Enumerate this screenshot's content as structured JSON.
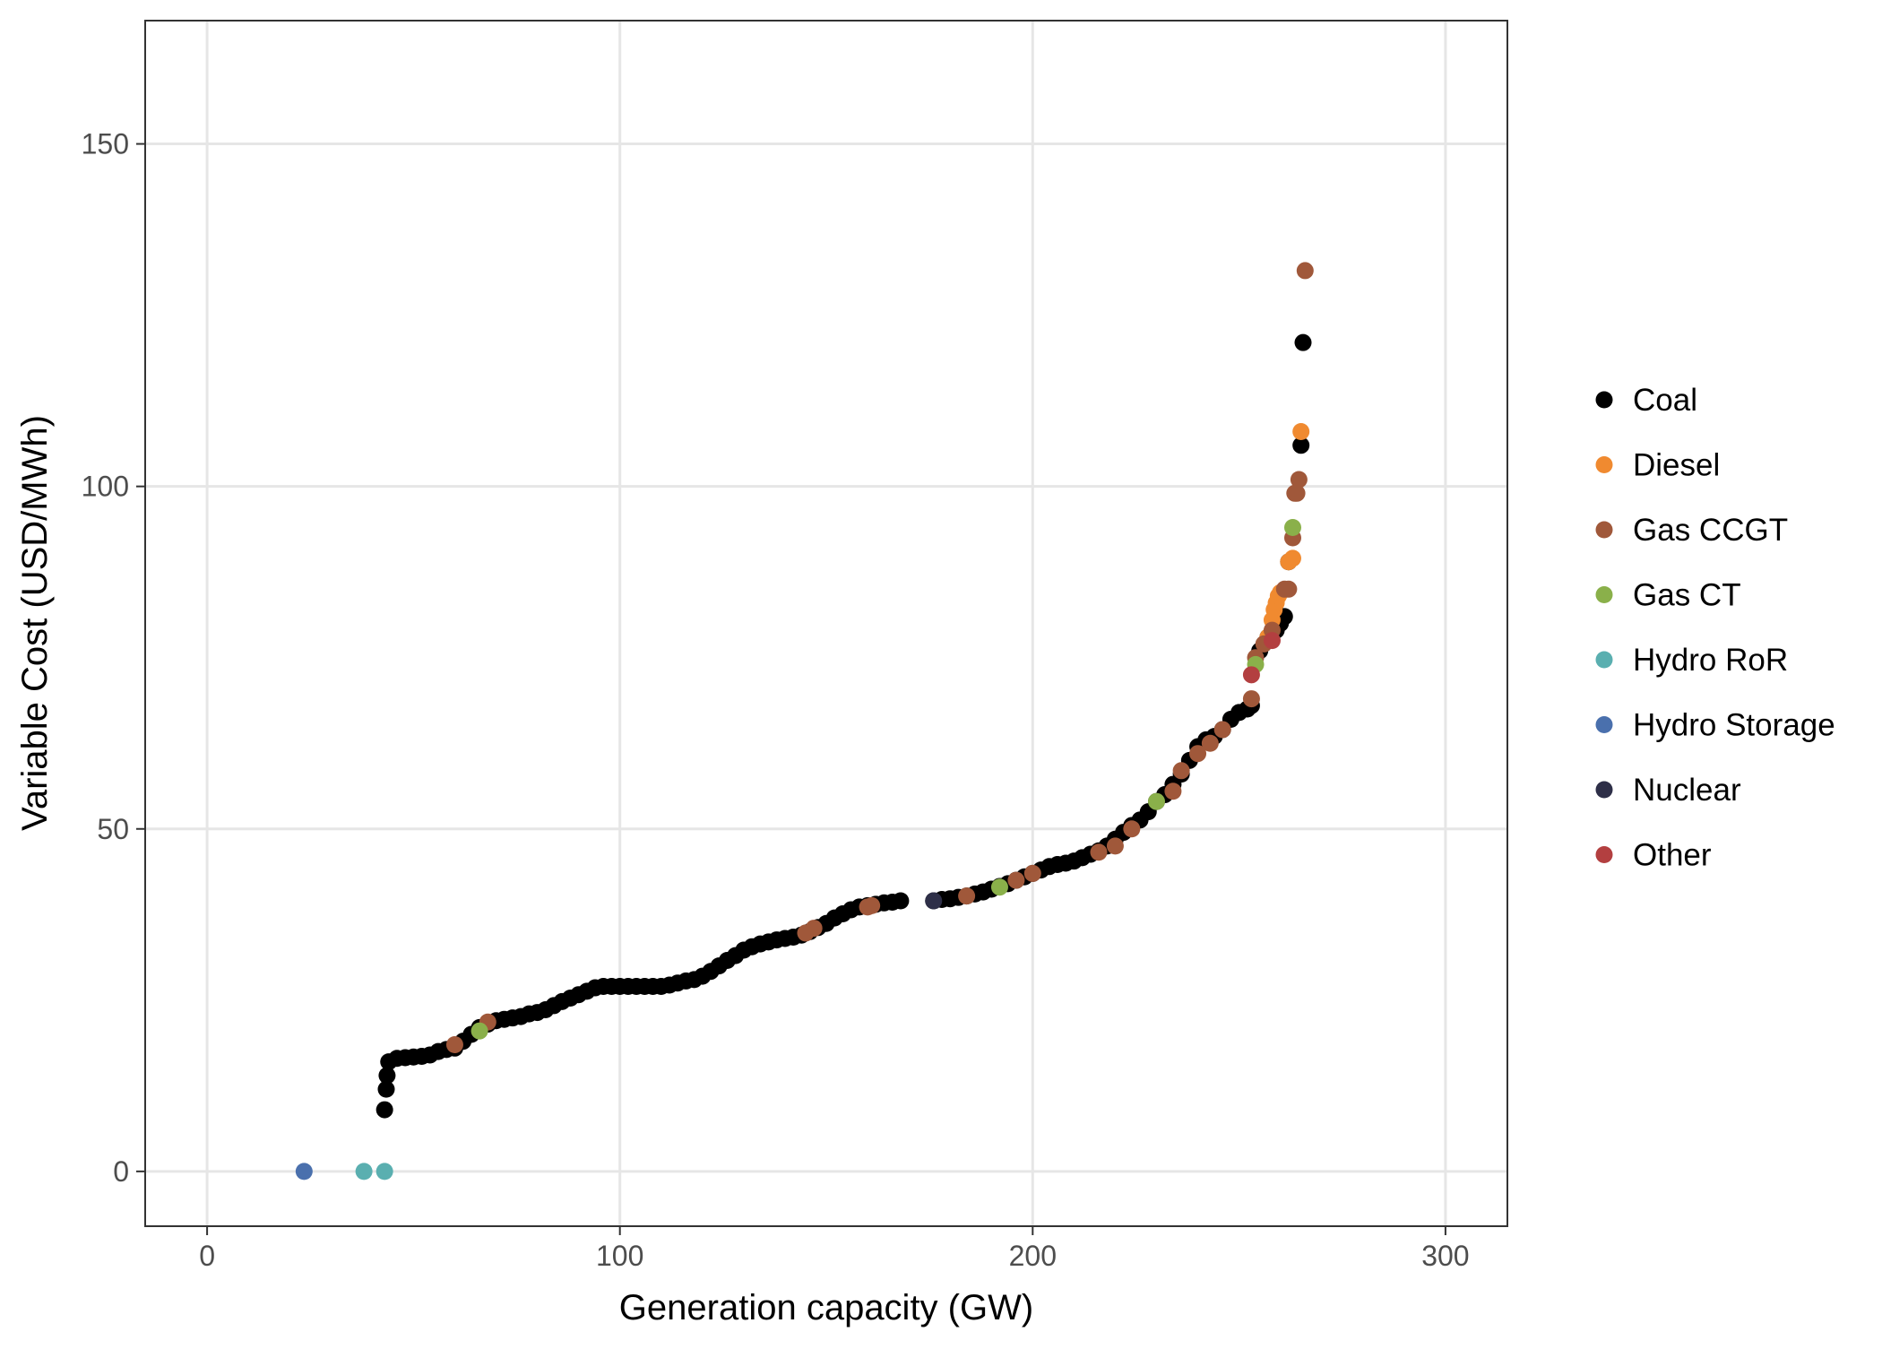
{
  "chart_data": {
    "type": "scatter",
    "title": "",
    "xlabel": "Generation capacity (GW)",
    "ylabel": "Variable Cost (USD/MWh)",
    "xlim": [
      -15,
      315
    ],
    "ylim": [
      -8,
      168
    ],
    "x_ticks": [
      0,
      100,
      200,
      300
    ],
    "y_ticks": [
      0,
      50,
      100,
      150
    ],
    "grid": true,
    "legend_position": "right",
    "series": [
      {
        "name": "Coal",
        "color": "#000000",
        "points": [
          [
            43,
            9
          ],
          [
            43.4,
            12
          ],
          [
            43.6,
            14
          ],
          [
            44,
            16
          ],
          [
            46,
            16.5
          ],
          [
            48,
            16.6
          ],
          [
            50,
            16.7
          ],
          [
            52,
            16.8
          ],
          [
            54,
            17
          ],
          [
            56,
            17.5
          ],
          [
            58,
            17.8
          ],
          [
            60,
            18
          ],
          [
            62,
            19
          ],
          [
            64,
            20
          ],
          [
            66,
            21
          ],
          [
            68,
            21.5
          ],
          [
            70,
            22
          ],
          [
            72,
            22.2
          ],
          [
            74,
            22.4
          ],
          [
            76,
            22.6
          ],
          [
            78,
            23
          ],
          [
            80,
            23.2
          ],
          [
            82,
            23.6
          ],
          [
            84,
            24.2
          ],
          [
            86,
            24.8
          ],
          [
            88,
            25.3
          ],
          [
            90,
            25.8
          ],
          [
            92,
            26.3
          ],
          [
            94,
            26.8
          ],
          [
            96,
            27
          ],
          [
            98,
            27
          ],
          [
            100,
            27
          ],
          [
            102,
            27
          ],
          [
            104,
            27
          ],
          [
            106,
            27
          ],
          [
            108,
            27
          ],
          [
            110,
            27
          ],
          [
            112,
            27.2
          ],
          [
            114,
            27.5
          ],
          [
            116,
            27.8
          ],
          [
            118,
            28
          ],
          [
            120,
            28.5
          ],
          [
            122,
            29.2
          ],
          [
            124,
            30
          ],
          [
            126,
            30.8
          ],
          [
            128,
            31.5
          ],
          [
            130,
            32.3
          ],
          [
            132,
            32.8
          ],
          [
            134,
            33.2
          ],
          [
            136,
            33.5
          ],
          [
            138,
            33.8
          ],
          [
            140,
            34
          ],
          [
            142,
            34.2
          ],
          [
            144,
            34.5
          ],
          [
            146,
            35
          ],
          [
            148,
            35.6
          ],
          [
            150,
            36.2
          ],
          [
            152,
            37
          ],
          [
            154,
            37.6
          ],
          [
            156,
            38.2
          ],
          [
            158,
            38.6
          ],
          [
            160,
            38.8
          ],
          [
            162,
            39
          ],
          [
            164,
            39.2
          ],
          [
            166,
            39.3
          ],
          [
            168,
            39.5
          ],
          [
            176,
            39.5
          ],
          [
            178,
            39.7
          ],
          [
            180,
            39.8
          ],
          [
            182,
            40
          ],
          [
            184,
            40.2
          ],
          [
            186,
            40.5
          ],
          [
            188,
            40.8
          ],
          [
            190,
            41.2
          ],
          [
            192,
            41.6
          ],
          [
            194,
            42
          ],
          [
            196,
            42.5
          ],
          [
            198,
            43
          ],
          [
            200,
            43.5
          ],
          [
            202,
            44
          ],
          [
            204,
            44.5
          ],
          [
            206,
            44.8
          ],
          [
            208,
            45
          ],
          [
            210,
            45.3
          ],
          [
            212,
            45.8
          ],
          [
            214,
            46.3
          ],
          [
            216,
            46.8
          ],
          [
            218,
            47.5
          ],
          [
            220,
            48.5
          ],
          [
            222,
            49.5
          ],
          [
            224,
            50.5
          ],
          [
            226,
            51.3
          ],
          [
            228,
            52.5
          ],
          [
            230,
            54
          ],
          [
            232,
            55
          ],
          [
            234,
            56.5
          ],
          [
            236,
            58
          ],
          [
            238,
            60
          ],
          [
            240,
            62
          ],
          [
            242,
            63
          ],
          [
            244,
            63.5
          ],
          [
            246,
            64.5
          ],
          [
            248,
            66
          ],
          [
            250,
            67
          ],
          [
            252,
            67.5
          ],
          [
            253,
            68
          ],
          [
            255,
            76
          ],
          [
            257,
            78
          ],
          [
            259,
            79
          ],
          [
            260,
            80
          ],
          [
            261,
            81
          ],
          [
            262,
            89
          ],
          [
            265,
            106
          ],
          [
            265.5,
            121
          ]
        ]
      },
      {
        "name": "Diesel",
        "color": "#F08A30",
        "points": [
          [
            257,
            78
          ],
          [
            258,
            80.5
          ],
          [
            258.5,
            82
          ],
          [
            259,
            83
          ],
          [
            259.5,
            84
          ],
          [
            260,
            84.5
          ],
          [
            262,
            89
          ],
          [
            263,
            89.5
          ],
          [
            265,
            108
          ]
        ]
      },
      {
        "name": "Gas CCGT",
        "color": "#A0583A",
        "points": [
          [
            60,
            18.5
          ],
          [
            68,
            21.8
          ],
          [
            145,
            34.8
          ],
          [
            147,
            35.5
          ],
          [
            160,
            38.6
          ],
          [
            161,
            38.8
          ],
          [
            184,
            40.2
          ],
          [
            196,
            42.5
          ],
          [
            200,
            43.5
          ],
          [
            216,
            46.6
          ],
          [
            220,
            47.5
          ],
          [
            224,
            50
          ],
          [
            234,
            55.5
          ],
          [
            236,
            58.5
          ],
          [
            240,
            61
          ],
          [
            243,
            62.5
          ],
          [
            246,
            64.5
          ],
          [
            253,
            69
          ],
          [
            254,
            75
          ],
          [
            256,
            77
          ],
          [
            258,
            79
          ],
          [
            261,
            85
          ],
          [
            262,
            85
          ],
          [
            263,
            92.5
          ],
          [
            263.5,
            99
          ],
          [
            264,
            99
          ],
          [
            264.5,
            101
          ],
          [
            266,
            131.5
          ]
        ]
      },
      {
        "name": "Gas CT",
        "color": "#8AB04A",
        "points": [
          [
            66,
            20.5
          ],
          [
            192,
            41.5
          ],
          [
            230,
            54
          ],
          [
            254,
            74
          ],
          [
            263,
            94
          ]
        ]
      },
      {
        "name": "Hydro RoR",
        "color": "#5AAFB0",
        "points": [
          [
            38,
            0
          ],
          [
            43,
            0
          ]
        ]
      },
      {
        "name": "Hydro Storage",
        "color": "#4A70AD",
        "points": [
          [
            23.5,
            0
          ]
        ]
      },
      {
        "name": "Nuclear",
        "color": "#2E2F48",
        "points": [
          [
            176,
            39.5
          ]
        ]
      },
      {
        "name": "Other",
        "color": "#B33F40",
        "points": [
          [
            253,
            72.5
          ],
          [
            258,
            77.5
          ]
        ]
      }
    ]
  },
  "colors": {
    "panel_border": "#333333",
    "grid": "#e6e6e6",
    "background": "#ffffff"
  }
}
